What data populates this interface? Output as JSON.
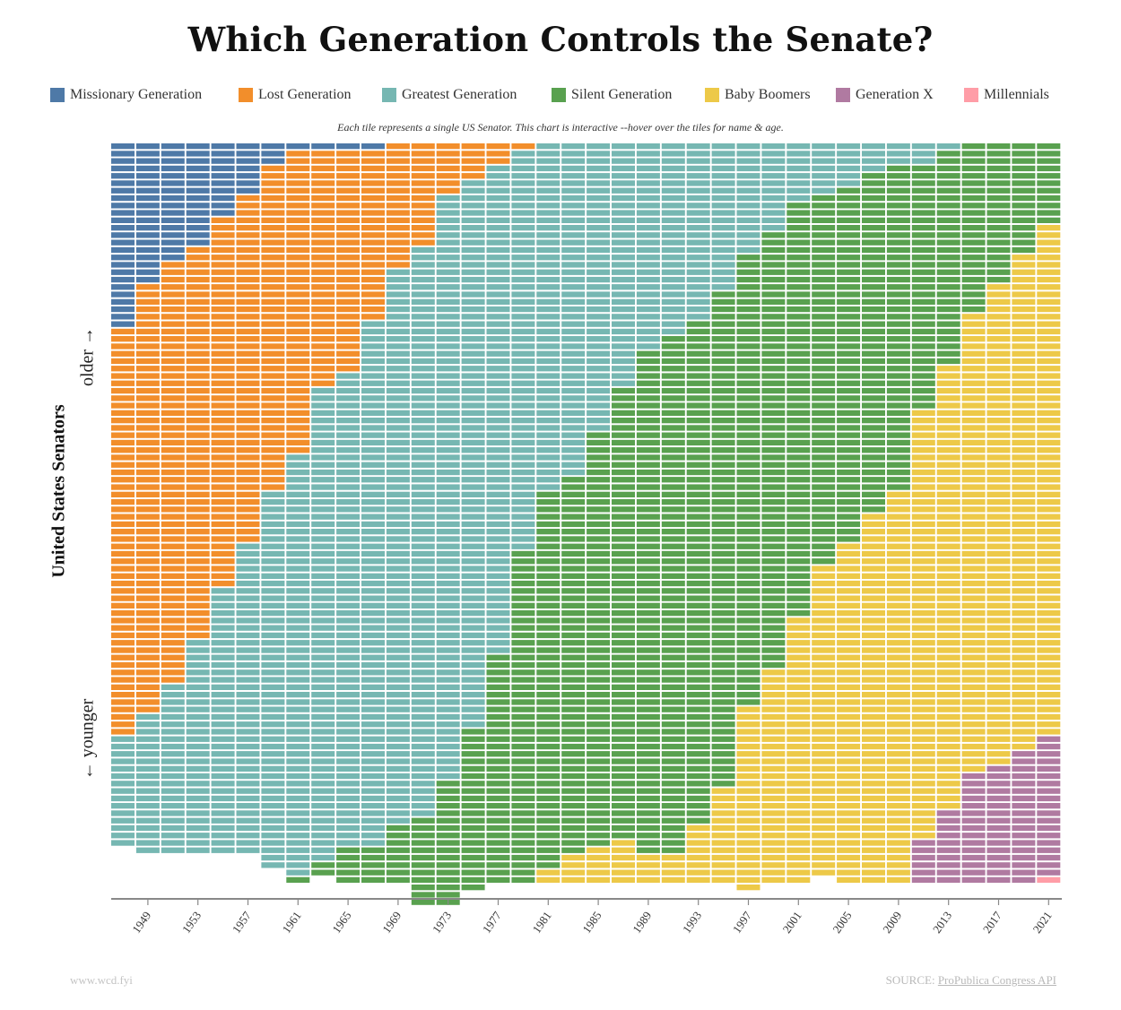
{
  "title": "Which Generation Controls the Senate?",
  "subtitle": "Each tile represents a single US Senator. This chart is interactive --hover over the tiles for name & age.",
  "ylabel": "United States Senators",
  "older_label": "older →",
  "younger_label": "← younger",
  "footer": {
    "site": "www.wcd.fyi",
    "source_prefix": "SOURCE: ",
    "source_link": "ProPublica Congress API"
  },
  "legend": [
    {
      "name": "Missionary Generation",
      "color": "#4e79a7"
    },
    {
      "name": "Lost Generation",
      "color": "#f28e2b"
    },
    {
      "name": "Greatest Generation",
      "color": "#76b7b2"
    },
    {
      "name": "Silent Generation",
      "color": "#59a14f"
    },
    {
      "name": "Baby Boomers",
      "color": "#edc948"
    },
    {
      "name": "Generation X",
      "color": "#b07aa1"
    },
    {
      "name": "Millennials",
      "color": "#ff9da7"
    }
  ],
  "chart_data": {
    "type": "heatmap",
    "description_of_encoding": "stacked tiles per Congress start year, oldest generation on top",
    "x_ticks": [
      "1949",
      "1953",
      "1957",
      "1961",
      "1965",
      "1969",
      "1973",
      "1977",
      "1981",
      "1985",
      "1989",
      "1993",
      "1997",
      "2001",
      "2005",
      "2009",
      "2013",
      "2017",
      "2021"
    ],
    "columns": [
      {
        "year": 1947,
        "counts": {
          "Missionary Generation": 25,
          "Lost Generation": 55,
          "Greatest Generation": 15
        }
      },
      {
        "year": 1949,
        "counts": {
          "Missionary Generation": 19,
          "Lost Generation": 58,
          "Greatest Generation": 19
        }
      },
      {
        "year": 1951,
        "counts": {
          "Missionary Generation": 16,
          "Lost Generation": 57,
          "Greatest Generation": 23
        }
      },
      {
        "year": 1953,
        "counts": {
          "Missionary Generation": 14,
          "Lost Generation": 53,
          "Greatest Generation": 29
        }
      },
      {
        "year": 1955,
        "counts": {
          "Missionary Generation": 10,
          "Lost Generation": 50,
          "Greatest Generation": 36
        }
      },
      {
        "year": 1957,
        "counts": {
          "Missionary Generation": 7,
          "Lost Generation": 47,
          "Greatest Generation": 42
        }
      },
      {
        "year": 1959,
        "counts": {
          "Missionary Generation": 3,
          "Lost Generation": 44,
          "Greatest Generation": 51
        }
      },
      {
        "year": 1961,
        "counts": {
          "Missionary Generation": 1,
          "Lost Generation": 41,
          "Greatest Generation": 57,
          "Silent Generation": 1
        }
      },
      {
        "year": 1963,
        "counts": {
          "Missionary Generation": 1,
          "Lost Generation": 32,
          "Greatest Generation": 64,
          "Silent Generation": 2
        }
      },
      {
        "year": 1965,
        "counts": {
          "Missionary Generation": 1,
          "Lost Generation": 30,
          "Greatest Generation": 64,
          "Silent Generation": 5
        }
      },
      {
        "year": 1967,
        "counts": {
          "Missionary Generation": 1,
          "Lost Generation": 23,
          "Greatest Generation": 71,
          "Silent Generation": 5
        }
      },
      {
        "year": 1969,
        "counts": {
          "Lost Generation": 17,
          "Greatest Generation": 75,
          "Silent Generation": 8
        }
      },
      {
        "year": 1971,
        "counts": {
          "Lost Generation": 14,
          "Greatest Generation": 77,
          "Silent Generation": 12
        }
      },
      {
        "year": 1973,
        "counts": {
          "Lost Generation": 7,
          "Greatest Generation": 79,
          "Silent Generation": 17
        }
      },
      {
        "year": 1975,
        "counts": {
          "Lost Generation": 5,
          "Greatest Generation": 74,
          "Silent Generation": 22
        }
      },
      {
        "year": 1977,
        "counts": {
          "Lost Generation": 3,
          "Greatest Generation": 66,
          "Silent Generation": 31
        }
      },
      {
        "year": 1979,
        "counts": {
          "Lost Generation": 1,
          "Greatest Generation": 54,
          "Silent Generation": 45
        }
      },
      {
        "year": 1981,
        "counts": {
          "Greatest Generation": 47,
          "Silent Generation": 51,
          "Baby Boomers": 2
        }
      },
      {
        "year": 1983,
        "counts": {
          "Greatest Generation": 45,
          "Silent Generation": 51,
          "Baby Boomers": 4
        }
      },
      {
        "year": 1985,
        "counts": {
          "Greatest Generation": 39,
          "Silent Generation": 56,
          "Baby Boomers": 5
        }
      },
      {
        "year": 1987,
        "counts": {
          "Greatest Generation": 33,
          "Silent Generation": 61,
          "Baby Boomers": 6
        }
      },
      {
        "year": 1989,
        "counts": {
          "Greatest Generation": 28,
          "Silent Generation": 68,
          "Baby Boomers": 4
        }
      },
      {
        "year": 1991,
        "counts": {
          "Greatest Generation": 26,
          "Silent Generation": 70,
          "Baby Boomers": 4
        }
      },
      {
        "year": 1993,
        "counts": {
          "Greatest Generation": 24,
          "Silent Generation": 68,
          "Baby Boomers": 8
        }
      },
      {
        "year": 1995,
        "counts": {
          "Greatest Generation": 20,
          "Silent Generation": 67,
          "Baby Boomers": 13
        }
      },
      {
        "year": 1997,
        "counts": {
          "Greatest Generation": 15,
          "Silent Generation": 61,
          "Baby Boomers": 25
        }
      },
      {
        "year": 1999,
        "counts": {
          "Greatest Generation": 12,
          "Silent Generation": 59,
          "Baby Boomers": 29
        }
      },
      {
        "year": 2001,
        "counts": {
          "Greatest Generation": 8,
          "Silent Generation": 56,
          "Baby Boomers": 36
        }
      },
      {
        "year": 2003,
        "counts": {
          "Greatest Generation": 7,
          "Silent Generation": 50,
          "Baby Boomers": 42
        }
      },
      {
        "year": 2005,
        "counts": {
          "Greatest Generation": 6,
          "Silent Generation": 48,
          "Baby Boomers": 46
        }
      },
      {
        "year": 2007,
        "counts": {
          "Greatest Generation": 4,
          "Silent Generation": 46,
          "Baby Boomers": 50
        }
      },
      {
        "year": 2009,
        "counts": {
          "Greatest Generation": 3,
          "Silent Generation": 44,
          "Baby Boomers": 53
        }
      },
      {
        "year": 2011,
        "counts": {
          "Greatest Generation": 3,
          "Silent Generation": 33,
          "Baby Boomers": 58,
          "Generation X": 6
        }
      },
      {
        "year": 2013,
        "counts": {
          "Greatest Generation": 1,
          "Silent Generation": 29,
          "Baby Boomers": 60,
          "Generation X": 10
        }
      },
      {
        "year": 2015,
        "counts": {
          "Silent Generation": 23,
          "Baby Boomers": 62,
          "Generation X": 15
        }
      },
      {
        "year": 2017,
        "counts": {
          "Silent Generation": 19,
          "Baby Boomers": 65,
          "Generation X": 16
        }
      },
      {
        "year": 2019,
        "counts": {
          "Silent Generation": 15,
          "Baby Boomers": 67,
          "Generation X": 18
        }
      },
      {
        "year": 2021,
        "counts": {
          "Silent Generation": 11,
          "Baby Boomers": 69,
          "Generation X": 19,
          "Millennials": 1
        }
      }
    ]
  }
}
